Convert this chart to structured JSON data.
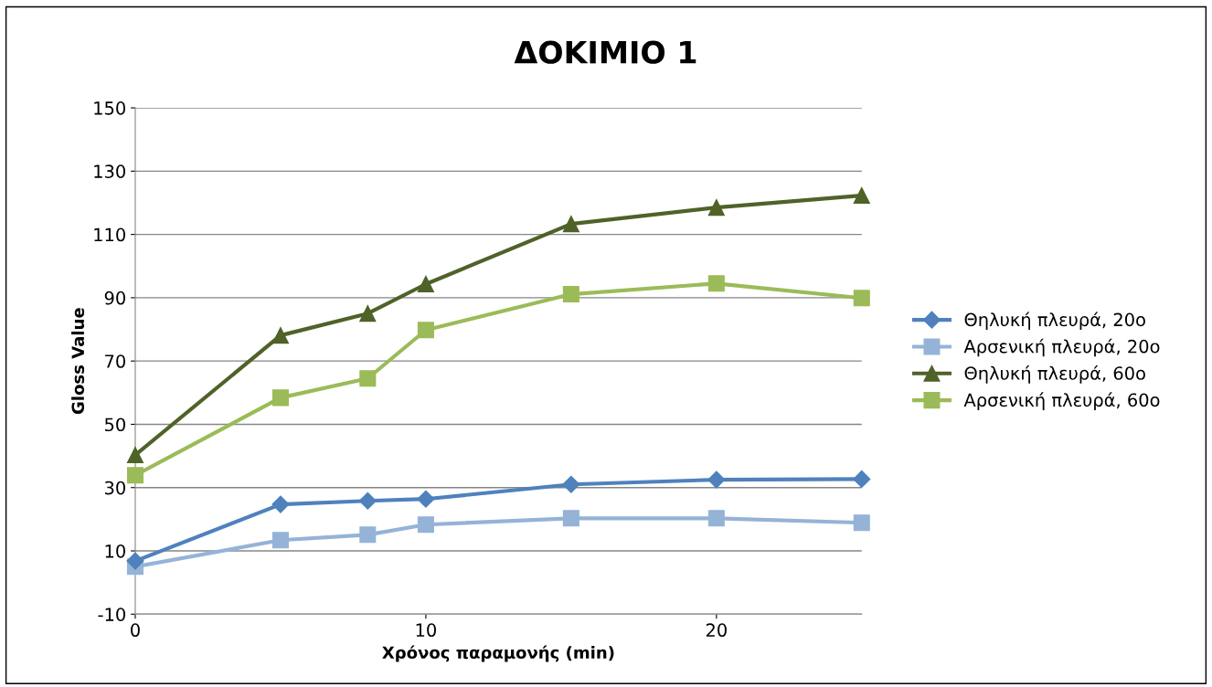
{
  "chart_data": {
    "type": "line",
    "title": "ΔΟΚΙΜΙΟ 1",
    "xlabel": "Χρόνος παραμονής (min)",
    "ylabel": "Gloss Value",
    "x": [
      0,
      5,
      8,
      10,
      15,
      20,
      25
    ],
    "series": [
      {
        "name": "Θηλυκή πλευρά, 20o",
        "color": "#4f81bd",
        "marker": "diamond",
        "values": [
          6.8,
          24.7,
          25.8,
          26.4,
          31.0,
          32.5,
          32.7
        ]
      },
      {
        "name": "Αρσενική πλευρά, 20o",
        "color": "#95b3d7",
        "marker": "square",
        "values": [
          5.0,
          13.4,
          15.1,
          18.3,
          20.3,
          20.3,
          18.9
        ]
      },
      {
        "name": "Θηλυκή πλευρά, 60o",
        "color": "#4f6228",
        "marker": "triangle",
        "values": [
          40.3,
          78.1,
          85.0,
          94.3,
          113.3,
          118.5,
          122.3
        ]
      },
      {
        "name": "Αρσενική πλευρά, 60o",
        "color": "#9bbb59",
        "marker": "square",
        "values": [
          33.9,
          58.4,
          64.5,
          79.8,
          91.1,
          94.5,
          89.9
        ]
      }
    ],
    "xlim": [
      0,
      25
    ],
    "xticks": [
      0,
      10,
      20
    ],
    "ylim": [
      -10,
      150
    ],
    "yticks": [
      -10,
      10,
      30,
      50,
      70,
      90,
      110,
      130,
      150
    ],
    "grid": "y",
    "legend": "right",
    "line_style": "solid"
  }
}
